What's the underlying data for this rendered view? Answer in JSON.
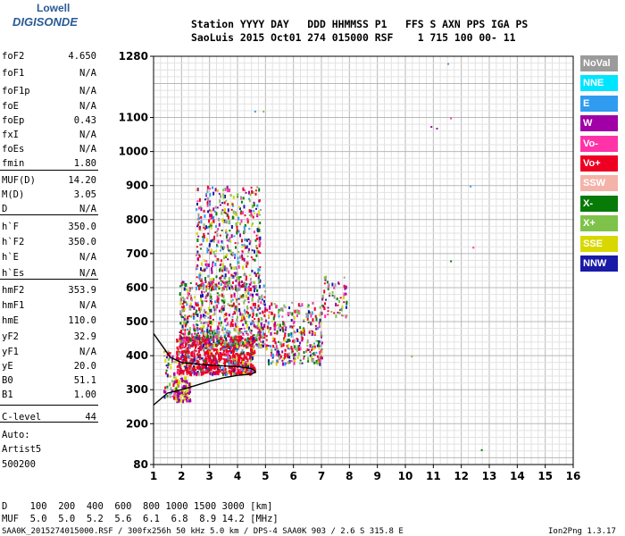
{
  "logo": {
    "line1": "Lowell",
    "line2": "DIGISONDE"
  },
  "header": {
    "line1": "Station YYYY DAY   DDD HHMMSS P1   FFS S AXN PPS IGA PS",
    "line2": "SaoLuis 2015 Oct01 274 015000 RSF    1 715 100 00- 11"
  },
  "params": [
    {
      "name": "foF2",
      "value": "4.650"
    },
    {
      "name": "foF1",
      "value": "N/A"
    },
    {
      "name": "foF1p",
      "value": "N/A"
    },
    {
      "name": "foE",
      "value": "N/A"
    },
    {
      "name": "foEp",
      "value": "0.43"
    },
    {
      "name": "fxI",
      "value": "N/A"
    },
    {
      "name": "foEs",
      "value": "N/A"
    },
    {
      "name": "fmin",
      "value": "1.80"
    },
    {
      "name": "MUF(D)",
      "value": "14.20"
    },
    {
      "name": "M(D)",
      "value": "3.05"
    },
    {
      "name": "D",
      "value": "N/A"
    },
    {
      "name": "h`F",
      "value": "350.0"
    },
    {
      "name": "h`F2",
      "value": "350.0"
    },
    {
      "name": "h`E",
      "value": "N/A"
    },
    {
      "name": "h`Es",
      "value": "N/A"
    },
    {
      "name": "hmF2",
      "value": "353.9"
    },
    {
      "name": "hmF1",
      "value": "N/A"
    },
    {
      "name": "hmE",
      "value": "110.0"
    },
    {
      "name": "yF2",
      "value": "32.9"
    },
    {
      "name": "yF1",
      "value": "N/A"
    },
    {
      "name": "yE",
      "value": "20.0"
    },
    {
      "name": "B0",
      "value": "51.1"
    },
    {
      "name": "B1",
      "value": "1.00"
    },
    {
      "name": "C-level",
      "value": "44"
    }
  ],
  "notes": [
    "Auto:",
    "Artist5",
    "500200"
  ],
  "legend": [
    {
      "label": "NoVal",
      "color": "#9b9b9b"
    },
    {
      "label": "NNE",
      "color": "#00e5ff"
    },
    {
      "label": "E",
      "color": "#2f9cf0"
    },
    {
      "label": "W",
      "color": "#a000a6"
    },
    {
      "label": "Vo-",
      "color": "#ff33a8"
    },
    {
      "label": "Vo+",
      "color": "#ee0022"
    },
    {
      "label": "SSW",
      "color": "#f4b3a8"
    },
    {
      "label": "X-",
      "color": "#087a08"
    },
    {
      "label": "X+",
      "color": "#7fc24a"
    },
    {
      "label": "SSE",
      "color": "#d8d800"
    },
    {
      "label": "NNW",
      "color": "#1a1aa8"
    }
  ],
  "footer": {
    "d_row": "D    100  200  400  600  800 1000 1500 3000 [km]",
    "muf_row": "MUF  5.0  5.0  5.2  5.6  6.1  6.8  8.9 14.2 [MHz]",
    "file_line": "SAA0K_2015274015000.RSF / 300fx256h 50 kHz 5.0 km / DPS-4 SAA0K 903 / 2.6 S 315.8 E",
    "version": "Ion2Png 1.3.17"
  },
  "chart_data": {
    "type": "scatter",
    "title": "",
    "xlabel": "",
    "ylabel": "",
    "xlim": [
      1,
      16
    ],
    "ylim": [
      80,
      1280
    ],
    "x_ticks": [
      1,
      2,
      3,
      4,
      5,
      6,
      7,
      8,
      9,
      10,
      11,
      12,
      13,
      14,
      15,
      16
    ],
    "y_ticks": [
      80,
      200,
      300,
      400,
      500,
      600,
      700,
      800,
      900,
      1000,
      1100,
      1280
    ],
    "grid": true,
    "legend_position": "right",
    "trace_lower": [
      [
        1.0,
        255
      ],
      [
        1.5,
        290
      ],
      [
        2.0,
        300
      ],
      [
        2.5,
        312
      ],
      [
        3.0,
        325
      ],
      [
        3.5,
        335
      ],
      [
        4.0,
        342
      ],
      [
        4.5,
        346
      ],
      [
        4.65,
        352
      ]
    ],
    "trace_upper": [
      [
        1.0,
        465
      ],
      [
        1.3,
        430
      ],
      [
        1.6,
        395
      ],
      [
        2.0,
        380
      ],
      [
        2.5,
        376
      ],
      [
        3.0,
        372
      ],
      [
        3.5,
        370
      ],
      [
        4.0,
        368
      ],
      [
        4.5,
        362
      ],
      [
        4.65,
        354
      ]
    ],
    "echo_clusters": [
      {
        "fmin": 1.7,
        "fmax": 2.3,
        "hmin": 270,
        "hmax": 340,
        "count": 120
      },
      {
        "fmin": 1.8,
        "fmax": 4.6,
        "hmin": 350,
        "hmax": 460,
        "count": 900
      },
      {
        "fmin": 1.9,
        "fmax": 5.0,
        "hmin": 430,
        "hmax": 620,
        "count": 700
      },
      {
        "fmin": 2.5,
        "fmax": 4.8,
        "hmin": 600,
        "hmax": 900,
        "count": 500
      },
      {
        "fmin": 5.0,
        "fmax": 7.0,
        "hmin": 380,
        "hmax": 560,
        "count": 320
      },
      {
        "fmin": 7.0,
        "fmax": 7.9,
        "hmin": 520,
        "hmax": 640,
        "count": 60
      },
      {
        "fmin": 1.3,
        "fmax": 1.8,
        "hmin": 280,
        "hmax": 420,
        "count": 60
      }
    ],
    "isolated_points": [
      {
        "f": 11.5,
        "h": 1260,
        "color": "#2f9cf0"
      },
      {
        "f": 10.9,
        "h": 1075,
        "color": "#a000a6"
      },
      {
        "f": 11.1,
        "h": 1070,
        "color": "#a000a6"
      },
      {
        "f": 11.6,
        "h": 1100,
        "color": "#ff33a8"
      },
      {
        "f": 12.3,
        "h": 900,
        "color": "#2f9cf0"
      },
      {
        "f": 12.4,
        "h": 720,
        "color": "#ff33a8"
      },
      {
        "f": 11.6,
        "h": 680,
        "color": "#087a08"
      },
      {
        "f": 12.7,
        "h": 125,
        "color": "#087a08"
      },
      {
        "f": 10.2,
        "h": 400,
        "color": "#7fc24a"
      },
      {
        "f": 4.9,
        "h": 1120,
        "color": "#7fc24a"
      },
      {
        "f": 4.6,
        "h": 1120,
        "color": "#2f9cf0"
      }
    ]
  }
}
